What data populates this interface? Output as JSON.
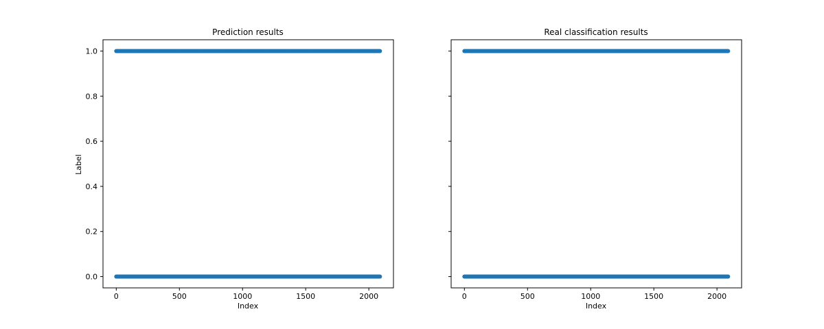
{
  "chart_data": [
    {
      "type": "scatter",
      "title": "Prediction results",
      "xlabel": "Index",
      "ylabel": "Label",
      "xlim": [
        -105,
        2195
      ],
      "ylim": [
        -0.05,
        1.05
      ],
      "xticks": [
        "0",
        "500",
        "1000",
        "1500",
        "2000"
      ],
      "yticks": [
        "0.0",
        "0.2",
        "0.4",
        "0.6",
        "0.8",
        "1.0"
      ],
      "series": [
        {
          "color": "#1f77b4",
          "description": "points densely cover indices 0–2090 at y=0 and y=1",
          "x_range": [
            0,
            2090
          ],
          "y_values": [
            0,
            1
          ]
        }
      ]
    },
    {
      "type": "scatter",
      "title": "Real classification results",
      "xlabel": "Index",
      "ylabel": "",
      "xlim": [
        -105,
        2195
      ],
      "ylim": [
        -0.05,
        1.05
      ],
      "xticks": [
        "0",
        "500",
        "1000",
        "1500",
        "2000"
      ],
      "yticks": [
        "",
        "",
        "",
        "",
        "",
        ""
      ],
      "series": [
        {
          "color": "#1f77b4",
          "description": "points densely cover indices 0–2090 at y=0 and y=1",
          "x_range": [
            0,
            2090
          ],
          "y_values": [
            0,
            1
          ]
        }
      ]
    }
  ]
}
